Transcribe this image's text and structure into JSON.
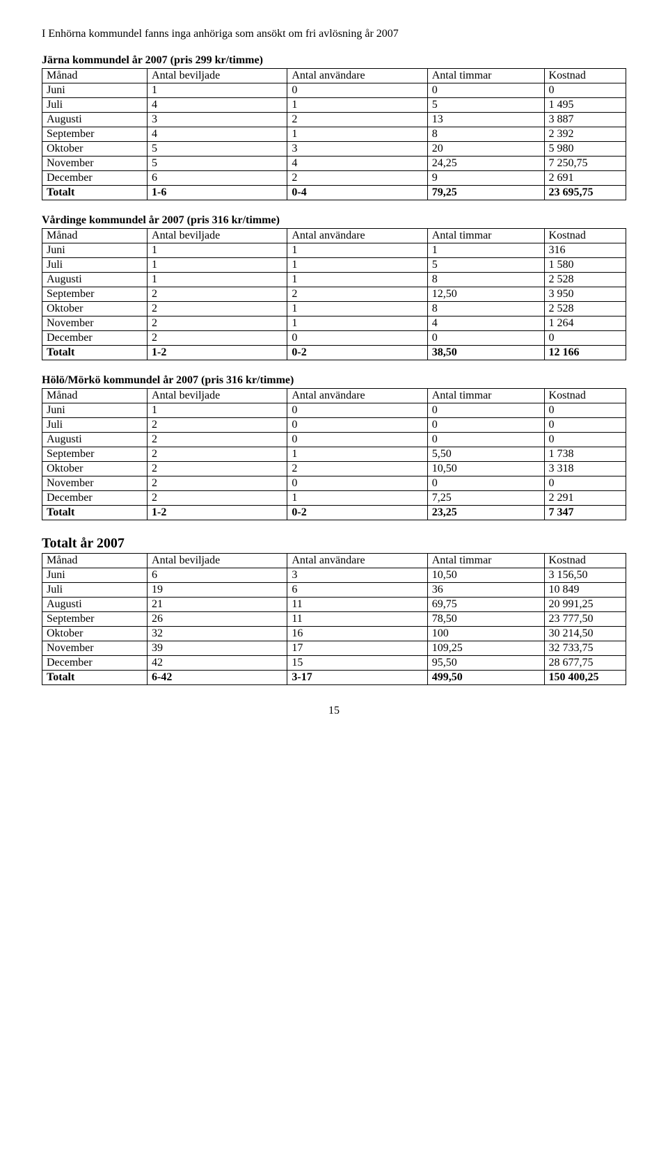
{
  "intro": "I Enhörna kommundel fanns inga anhöriga som ansökt om fri avlösning år 2007",
  "headers": {
    "month": "Månad",
    "beviljade": "Antal beviljade",
    "anvandare": "Antal användare",
    "timmar": "Antal timmar",
    "kostnad": "Kostnad"
  },
  "tables": [
    {
      "title": "Järna kommundel år 2007 (pris 299 kr/timme)",
      "title_class": "section-title",
      "rows": [
        {
          "m": "Juni",
          "b": "1",
          "a": "0",
          "t": "0",
          "k": "0",
          "total": false
        },
        {
          "m": "Juli",
          "b": "4",
          "a": "1",
          "t": "5",
          "k": "1 495",
          "total": false
        },
        {
          "m": "Augusti",
          "b": "3",
          "a": "2",
          "t": "13",
          "k": "3 887",
          "total": false
        },
        {
          "m": "September",
          "b": "4",
          "a": "1",
          "t": "8",
          "k": "2 392",
          "total": false
        },
        {
          "m": "Oktober",
          "b": "5",
          "a": "3",
          "t": "20",
          "k": "5 980",
          "total": false
        },
        {
          "m": "November",
          "b": "5",
          "a": "4",
          "t": "24,25",
          "k": "7 250,75",
          "total": false
        },
        {
          "m": "December",
          "b": "6",
          "a": "2",
          "t": "9",
          "k": "2 691",
          "total": false
        },
        {
          "m": "Totalt",
          "b": "1-6",
          "a": "0-4",
          "t": "79,25",
          "k": "23 695,75",
          "total": true
        }
      ]
    },
    {
      "title": "Vårdinge kommundel år 2007 (pris 316 kr/timme)",
      "title_class": "section-title",
      "rows": [
        {
          "m": "Juni",
          "b": "1",
          "a": "1",
          "t": "1",
          "k": "316",
          "total": false
        },
        {
          "m": "Juli",
          "b": "1",
          "a": "1",
          "t": "5",
          "k": "1 580",
          "total": false
        },
        {
          "m": "Augusti",
          "b": "1",
          "a": "1",
          "t": "8",
          "k": "2 528",
          "total": false
        },
        {
          "m": "September",
          "b": "2",
          "a": "2",
          "t": "12,50",
          "k": "3 950",
          "total": false
        },
        {
          "m": "Oktober",
          "b": "2",
          "a": "1",
          "t": "8",
          "k": "2 528",
          "total": false
        },
        {
          "m": "November",
          "b": "2",
          "a": "1",
          "t": "4",
          "k": "1 264",
          "total": false
        },
        {
          "m": "December",
          "b": "2",
          "a": "0",
          "t": "0",
          "k": "0",
          "total": false
        },
        {
          "m": "Totalt",
          "b": "1-2",
          "a": "0-2",
          "t": "38,50",
          "k": "12 166",
          "total": true
        }
      ]
    },
    {
      "title": "Hölö/Mörkö kommundel år 2007 (pris 316 kr/timme)",
      "title_class": "section-title",
      "rows": [
        {
          "m": "Juni",
          "b": "1",
          "a": "0",
          "t": "0",
          "k": "0",
          "total": false
        },
        {
          "m": "Juli",
          "b": "2",
          "a": "0",
          "t": "0",
          "k": "0",
          "total": false
        },
        {
          "m": "Augusti",
          "b": "2",
          "a": "0",
          "t": "0",
          "k": "0",
          "total": false
        },
        {
          "m": "September",
          "b": "2",
          "a": "1",
          "t": "5,50",
          "k": "1 738",
          "total": false
        },
        {
          "m": "Oktober",
          "b": "2",
          "a": "2",
          "t": "10,50",
          "k": "3 318",
          "total": false
        },
        {
          "m": "November",
          "b": "2",
          "a": "0",
          "t": "0",
          "k": "0",
          "total": false
        },
        {
          "m": "December",
          "b": "2",
          "a": "1",
          "t": "7,25",
          "k": "2 291",
          "total": false
        },
        {
          "m": "Totalt",
          "b": " 1-2",
          "a": "0-2",
          "t": "23,25",
          "k": "7 347",
          "total": true
        }
      ]
    },
    {
      "title": "Totalt år 2007",
      "title_class": "big-title",
      "rows": [
        {
          "m": "Juni",
          "b": "6",
          "a": "3",
          "t": "10,50",
          "k": "3 156,50",
          "total": false
        },
        {
          "m": "Juli",
          "b": "19",
          "a": "6",
          "t": "36",
          "k": "10 849",
          "total": false
        },
        {
          "m": "Augusti",
          "b": "21",
          "a": "11",
          "t": "69,75",
          "k": "20 991,25",
          "total": false
        },
        {
          "m": "September",
          "b": "26",
          "a": "11",
          "t": "78,50",
          "k": "23 777,50",
          "total": false
        },
        {
          "m": "Oktober",
          "b": "32",
          "a": "16",
          "t": "100",
          "k": "30 214,50",
          "total": false
        },
        {
          "m": "November",
          "b": "39",
          "a": "17",
          "t": "109,25",
          "k": "32 733,75",
          "total": false
        },
        {
          "m": "December",
          "b": "42",
          "a": "15",
          "t": "95,50",
          "k": "28 677,75",
          "total": false
        },
        {
          "m": "Totalt",
          "b": "6-42",
          "a": "3-17",
          "t": "499,50",
          "k": "150 400,25",
          "total": true
        }
      ]
    }
  ],
  "page_number": "15"
}
